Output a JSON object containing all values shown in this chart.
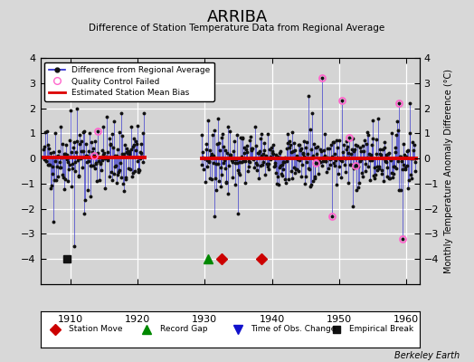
{
  "title": "ARRIBA",
  "subtitle": "Difference of Station Temperature Data from Regional Average",
  "ylabel": "Monthly Temperature Anomaly Difference (°C)",
  "xlabel_years": [
    1910,
    1920,
    1930,
    1940,
    1950,
    1960
  ],
  "xlim": [
    1905.5,
    1962
  ],
  "ylim": [
    -5,
    4
  ],
  "yticks_left": [
    -4,
    -3,
    -2,
    -1,
    0,
    1,
    2,
    3,
    4
  ],
  "yticks_right": [
    -4,
    -3,
    -2,
    -1,
    0,
    1,
    2,
    3,
    4
  ],
  "mean_bias": 0.0,
  "background_color": "#d8d8d8",
  "plot_bg_color": "#d4d4d4",
  "line_color": "#2222cc",
  "dot_color": "#111111",
  "bias_color": "#dd0000",
  "qc_color": "#ff66cc",
  "station_move_color": "#cc0000",
  "record_gap_color": "#008800",
  "tobs_color": "#1111cc",
  "empirical_color": "#111111",
  "watermark": "Berkeley Earth",
  "seg1_start": 1906.0,
  "seg1_end": 1921.0,
  "seg2_start": 1929.5,
  "seg2_end": 1961.5,
  "bias1_start": 1906.0,
  "bias1_end": 1921.0,
  "bias1_val": 0.05,
  "bias2_start": 1929.5,
  "bias2_end": 1961.5,
  "bias2_val": 0.02,
  "event_y": -4.0,
  "station_moves": [
    1932.5,
    1938.5
  ],
  "record_gaps": [
    1930.5
  ],
  "tobs_changes": [],
  "empirical_breaks": [
    1909.5
  ]
}
